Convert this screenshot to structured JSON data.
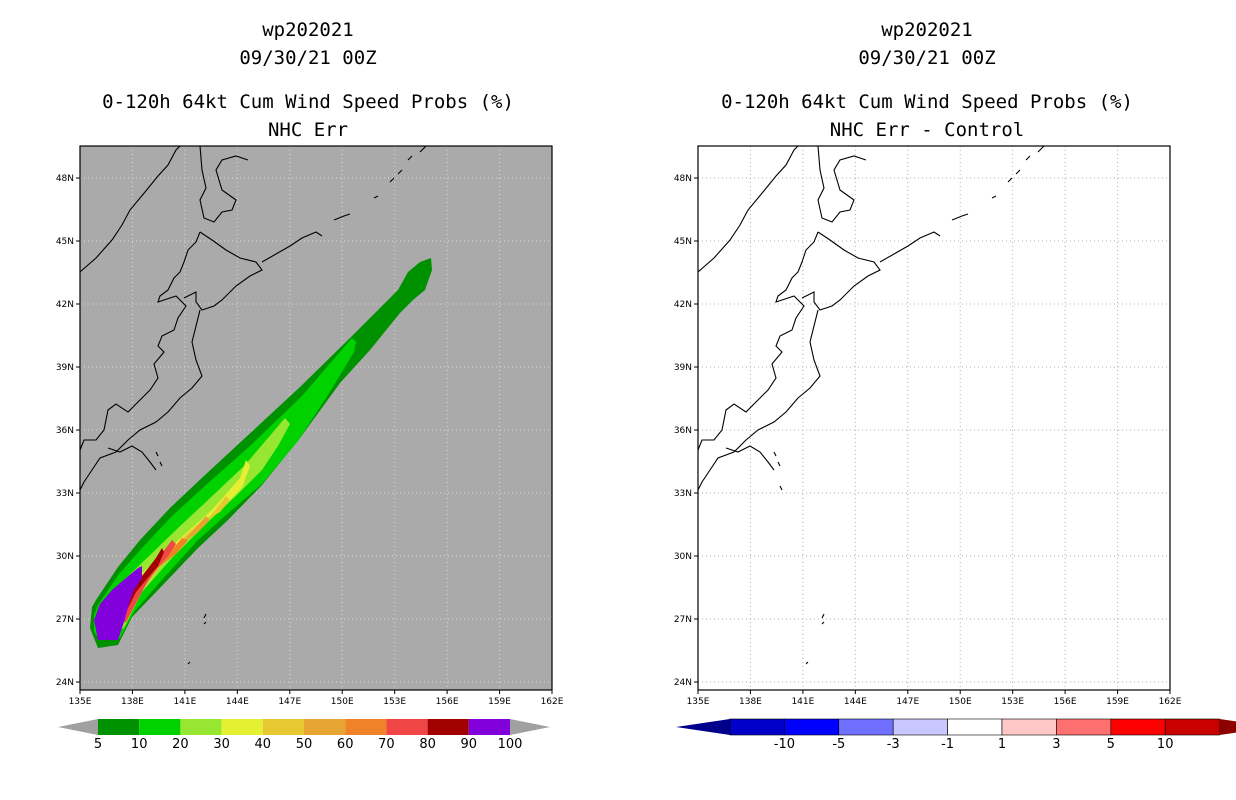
{
  "left_panel": {
    "title_lines": [
      "wp202021",
      "09/30/21 00Z",
      "0-120h 64kt Cum Wind Speed Probs (%)",
      "NHC Err"
    ],
    "lat_labels": [
      "48N",
      "45N",
      "42N",
      "39N",
      "36N",
      "33N",
      "30N",
      "27N",
      "24N"
    ],
    "lon_labels": [
      "135E",
      "138E",
      "141E",
      "144E",
      "147E",
      "150E",
      "153E",
      "156E",
      "159E",
      "162E"
    ],
    "colorbar": {
      "colors": [
        "#009100",
        "#00d200",
        "#96e632",
        "#e6f032",
        "#e6c832",
        "#e6a532",
        "#f08228",
        "#f04646",
        "#a00000",
        "#8200dc"
      ],
      "labels": [
        "5",
        "10",
        "20",
        "30",
        "40",
        "50",
        "60",
        "70",
        "80",
        "90",
        "100"
      ],
      "end_color": "#a0a0a0"
    },
    "background": "#aaaaaa"
  },
  "right_panel": {
    "title_lines": [
      "wp202021",
      "09/30/21 00Z",
      "0-120h 64kt Cum Wind Speed Probs (%)",
      "NHC Err - Control"
    ],
    "lat_labels": [
      "48N",
      "45N",
      "42N",
      "39N",
      "36N",
      "33N",
      "30N",
      "27N",
      "24N"
    ],
    "lon_labels": [
      "135E",
      "138E",
      "141E",
      "144E",
      "147E",
      "150E",
      "153E",
      "156E",
      "159E",
      "162E"
    ],
    "colorbar": {
      "colors": [
        "#0000c8",
        "#0000ff",
        "#7070ff",
        "#c8c8ff",
        "#ffffff",
        "#ffc8c8",
        "#ff7070",
        "#ff0000",
        "#c80000"
      ],
      "left_end": "#00008c",
      "right_end": "#8c0000",
      "labels": [
        "-10",
        "-5",
        "-3",
        "-1",
        "1",
        "3",
        "5",
        "10"
      ]
    },
    "background": "#ffffff"
  }
}
